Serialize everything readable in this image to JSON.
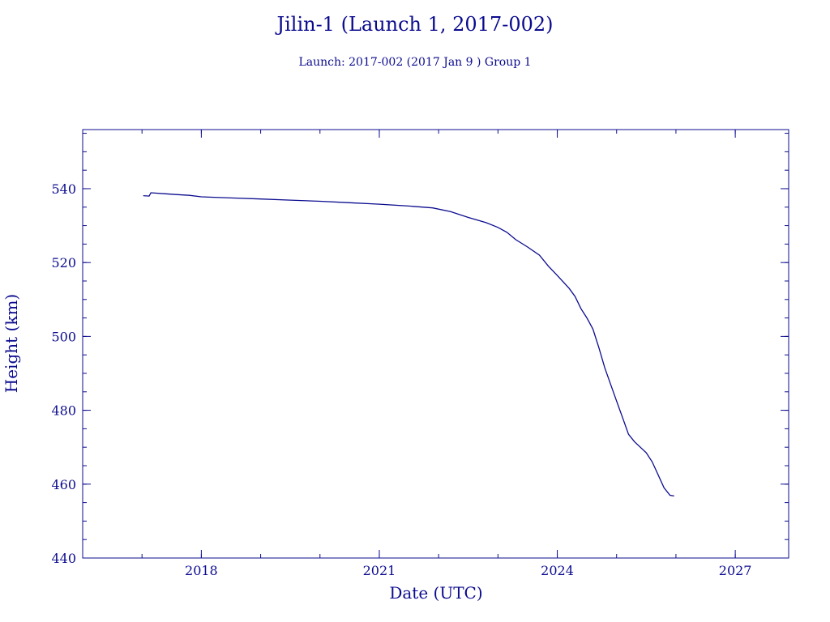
{
  "chart_data": {
    "type": "line",
    "title": "Jilin-1 (Launch 1, 2017-002)",
    "subtitle": "Launch: 2017-002  (2017 Jan  9 )  Group 1",
    "xlabel": "Date (UTC)",
    "ylabel": "Height (km)",
    "xlim": [
      2016.0,
      2027.9
    ],
    "ylim": [
      440,
      556
    ],
    "x_ticks": [
      {
        "value": 2018,
        "label": "2018"
      },
      {
        "value": 2021,
        "label": "2021"
      },
      {
        "value": 2024,
        "label": "2024"
      },
      {
        "value": 2027,
        "label": "2027"
      }
    ],
    "y_ticks": [
      {
        "value": 440,
        "label": "440"
      },
      {
        "value": 460,
        "label": "460"
      },
      {
        "value": 480,
        "label": "480"
      },
      {
        "value": 500,
        "label": "500"
      },
      {
        "value": 520,
        "label": "520"
      },
      {
        "value": 540,
        "label": "540"
      }
    ],
    "grid": false,
    "colors": {
      "line": "#0b0b8f",
      "axis": "#0b0b8f"
    },
    "series": [
      {
        "x": [
          2017.02,
          2017.12,
          2017.15,
          2017.22,
          2017.4,
          2017.6,
          2017.8,
          2018.0,
          2018.5,
          2019.0,
          2019.5,
          2020.0,
          2020.5,
          2021.0,
          2021.5,
          2021.9,
          2022.2,
          2022.5,
          2022.8,
          2023.0,
          2023.15,
          2023.3,
          2023.5,
          2023.7,
          2023.85,
          2024.0,
          2024.2,
          2024.3,
          2024.4,
          2024.5,
          2024.6,
          2024.7,
          2024.8,
          2024.9,
          2025.0,
          2025.1,
          2025.2,
          2025.3,
          2025.4,
          2025.5,
          2025.6,
          2025.7,
          2025.8,
          2025.9,
          2025.97
        ],
        "y": [
          538.1,
          538.0,
          538.9,
          538.8,
          538.6,
          538.4,
          538.2,
          537.8,
          537.5,
          537.2,
          536.9,
          536.6,
          536.2,
          535.8,
          535.3,
          534.8,
          533.8,
          532.2,
          530.8,
          529.5,
          528.2,
          526.2,
          524.2,
          522.0,
          519.0,
          516.5,
          513.0,
          510.8,
          507.5,
          505.0,
          502.0,
          497.0,
          491.5,
          487.0,
          482.5,
          478.0,
          473.5,
          471.5,
          470.0,
          468.5,
          466.0,
          462.5,
          459.0,
          457.0,
          456.8
        ]
      }
    ]
  }
}
